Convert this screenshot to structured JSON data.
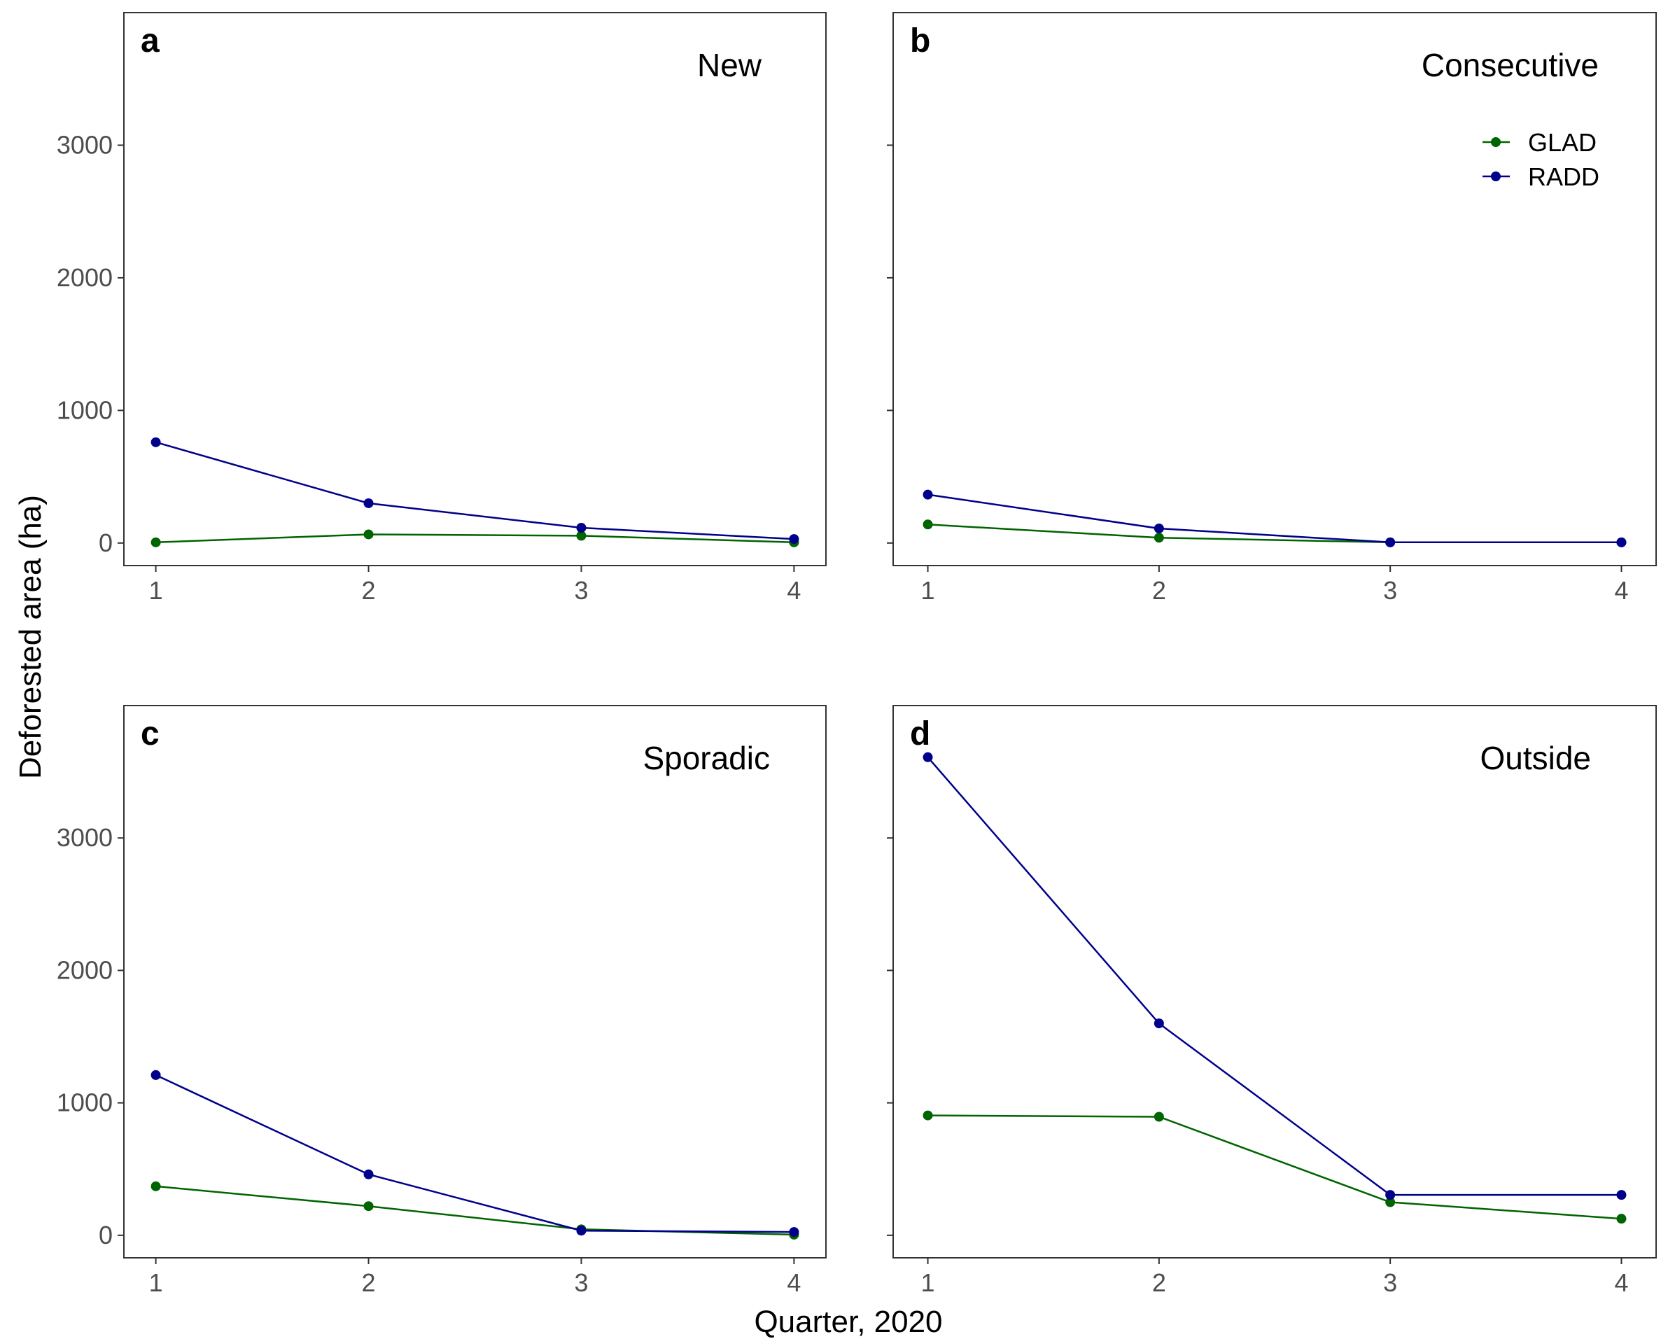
{
  "figure": {
    "ylabel": "Deforested area (ha)",
    "xlabel": "Quarter, 2020"
  },
  "legend": {
    "placement": "top-right of panel b",
    "entries": [
      {
        "label": "GLAD",
        "color": "#006400"
      },
      {
        "label": "RADD",
        "color": "#00008B"
      }
    ]
  },
  "chart_data": [
    {
      "type": "line",
      "letter": "a",
      "title": "New",
      "x": [
        1,
        2,
        3,
        4
      ],
      "xticks": [
        "1",
        "2",
        "3",
        "4"
      ],
      "yticks": [
        "0",
        "1000",
        "2000",
        "3000"
      ],
      "ylim": [
        -170,
        4000
      ],
      "series": [
        {
          "name": "GLAD",
          "color": "#006400",
          "values": [
            5,
            65,
            55,
            5
          ]
        },
        {
          "name": "RADD",
          "color": "#00008B",
          "values": [
            760,
            300,
            115,
            30
          ]
        }
      ]
    },
    {
      "type": "line",
      "letter": "b",
      "title": "Consecutive",
      "x": [
        1,
        2,
        3,
        4
      ],
      "xticks": [
        "1",
        "2",
        "3",
        "4"
      ],
      "yticks": [
        "",
        "",
        "",
        ""
      ],
      "ylim": [
        -170,
        4000
      ],
      "series": [
        {
          "name": "GLAD",
          "color": "#006400",
          "values": [
            140,
            40,
            5,
            5
          ]
        },
        {
          "name": "RADD",
          "color": "#00008B",
          "values": [
            365,
            110,
            5,
            5
          ]
        }
      ]
    },
    {
      "type": "line",
      "letter": "c",
      "title": "Sporadic",
      "x": [
        1,
        2,
        3,
        4
      ],
      "xticks": [
        "1",
        "2",
        "3",
        "4"
      ],
      "yticks": [
        "0",
        "1000",
        "2000",
        "3000"
      ],
      "ylim": [
        -170,
        4000
      ],
      "series": [
        {
          "name": "GLAD",
          "color": "#006400",
          "values": [
            370,
            220,
            45,
            5
          ]
        },
        {
          "name": "RADD",
          "color": "#00008B",
          "values": [
            1210,
            460,
            35,
            25
          ]
        }
      ]
    },
    {
      "type": "line",
      "letter": "d",
      "title": "Outside",
      "x": [
        1,
        2,
        3,
        4
      ],
      "xticks": [
        "1",
        "2",
        "3",
        "4"
      ],
      "yticks": [
        "",
        "",
        "",
        ""
      ],
      "ylim": [
        -170,
        4000
      ],
      "series": [
        {
          "name": "GLAD",
          "color": "#006400",
          "values": [
            905,
            895,
            250,
            125
          ]
        },
        {
          "name": "RADD",
          "color": "#00008B",
          "values": [
            3610,
            1600,
            305,
            305
          ]
        }
      ]
    }
  ]
}
